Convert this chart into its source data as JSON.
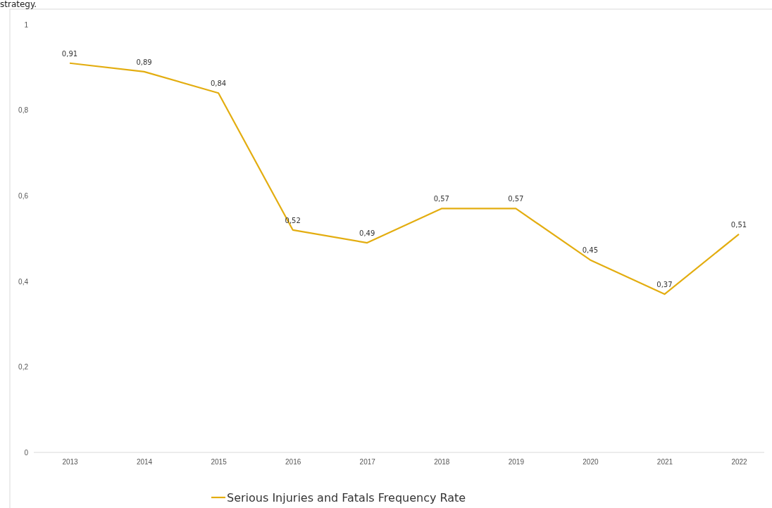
{
  "chart_data": {
    "type": "line",
    "categories": [
      "2013",
      "2014",
      "2015",
      "2016",
      "2017",
      "2018",
      "2019",
      "2020",
      "2021",
      "2022"
    ],
    "series": [
      {
        "name": "Serious Injuries and Fatals Frequency Rate",
        "color": "#e3ad10",
        "values": [
          0.91,
          0.89,
          0.84,
          0.52,
          0.49,
          0.57,
          0.57,
          0.45,
          0.37,
          0.51
        ],
        "value_labels": [
          "0,91",
          "0,89",
          "0,84",
          "0,52",
          "0,49",
          "0,57",
          "0,57",
          "0,45",
          "0,37",
          "0,51"
        ]
      }
    ],
    "ylim": [
      0,
      1
    ],
    "yticks": [
      0,
      {
        "value": 0.2,
        "label": "0,2"
      },
      {
        "value": 0.4,
        "label": "0,4"
      },
      {
        "value": 0.6,
        "label": "0,6"
      },
      {
        "value": 0.8,
        "label": "0,8"
      },
      1
    ],
    "legend": "bottom",
    "grid": false,
    "marker": "none",
    "line_style": "solid",
    "annotations": [
      "strategy."
    ]
  }
}
